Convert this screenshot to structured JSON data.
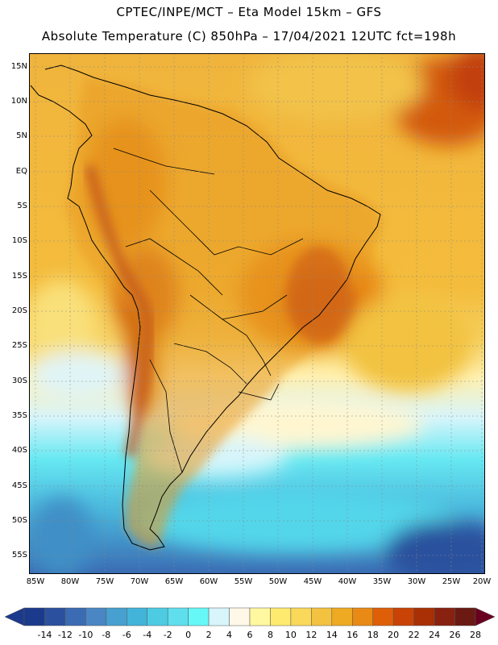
{
  "header": {
    "line1": "CPTEC/INPE/MCT –  Eta Model 15km – GFS",
    "line2": "Absolute Temperature (C) 850hPa – 17/04/2021 12UTC fct=198h"
  },
  "map": {
    "lat_labels": [
      "15N",
      "10N",
      "5N",
      "EQ",
      "5S",
      "10S",
      "15S",
      "20S",
      "25S",
      "30S",
      "35S",
      "40S",
      "45S",
      "50S",
      "55S"
    ],
    "lon_labels": [
      "85W",
      "80W",
      "75W",
      "70W",
      "65W",
      "60W",
      "55W",
      "50W",
      "45W",
      "40W",
      "35W",
      "30W",
      "25W",
      "20W"
    ]
  },
  "colorbar": {
    "ticks": [
      "-14",
      "-12",
      "-10",
      "-8",
      "-6",
      "-4",
      "-2",
      "0",
      "2",
      "4",
      "6",
      "8",
      "10",
      "12",
      "14",
      "16",
      "18",
      "20",
      "22",
      "24",
      "26",
      "28"
    ],
    "colors": [
      "#1c3a8c",
      "#2b519e",
      "#3a6bb3",
      "#4a86c3",
      "#47a0cf",
      "#42b4da",
      "#4ccbe3",
      "#5fdfed",
      "#66f7f7",
      "#d7f5fb",
      "#fff8e8",
      "#fff8a0",
      "#ffea70",
      "#f9d85a",
      "#f2c240",
      "#eeaa22",
      "#e88a14",
      "#de5f08",
      "#c94306",
      "#a83004",
      "#88210f",
      "#6a1a12"
    ]
  },
  "chart_data": {
    "type": "heatmap",
    "title": "Absolute Temperature (C) 850hPa – 17/04/2021 12UTC fct=198h",
    "units": "C",
    "x_range": [
      -85,
      -20
    ],
    "y_range": [
      -58,
      17
    ],
    "levels": [
      -14,
      -12,
      -10,
      -8,
      -6,
      -4,
      -2,
      0,
      2,
      4,
      6,
      8,
      10,
      12,
      14,
      16,
      18,
      20,
      22,
      24,
      26,
      28
    ]
  }
}
